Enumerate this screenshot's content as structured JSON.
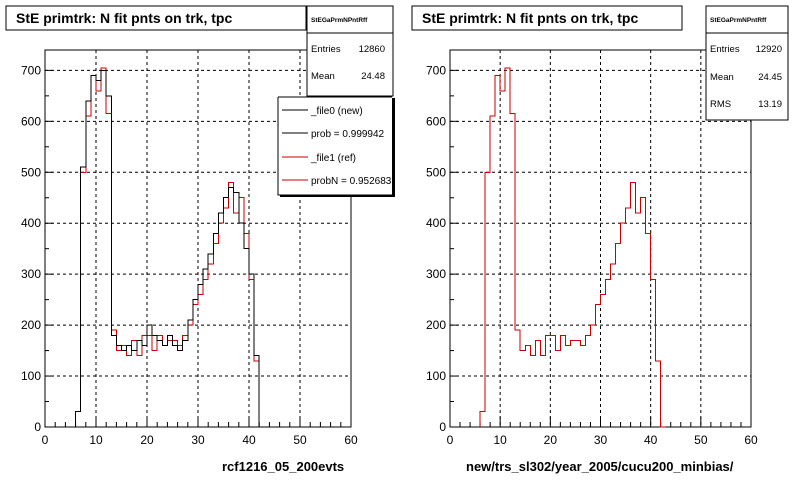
{
  "footer_text": "",
  "colors": {
    "new": "#000000",
    "ref": "#cc0000",
    "grid": "#000000"
  },
  "chart_data": [
    {
      "type": "histogram-step",
      "title": "StE primtrk: N fit pnts on trk, tpc",
      "xlabel": "rcf1216_05_200evts",
      "ylabel": "",
      "xlim": [
        0,
        60
      ],
      "ylim": [
        0,
        740
      ],
      "xticks": [
        0,
        10,
        20,
        30,
        40,
        50,
        60
      ],
      "yticks": [
        0,
        100,
        200,
        300,
        400,
        500,
        600,
        700
      ],
      "grid": true,
      "stats": {
        "header": "StEGaPrmNPntRff",
        "rows": [
          {
            "label": "Entries",
            "value": "12860"
          },
          {
            "label": "Mean",
            "value": "24.48"
          },
          {
            "label": "RMS",
            "value": "13.16"
          }
        ]
      },
      "legend": {
        "placement": "top-right",
        "entries": [
          {
            "label": "_file0 (new)",
            "color": "#000000"
          },
          {
            "label": "prob = 0.999942",
            "color": "#000000"
          },
          {
            "label": "_file1 (ref)",
            "color": "#cc0000"
          },
          {
            "label": "probN = 0.952683",
            "color": "#cc0000"
          }
        ]
      },
      "bin_start": 6,
      "bin_width": 1,
      "series": [
        {
          "name": "_file0 (new)",
          "color": "#000000",
          "values": [
            30,
            510,
            640,
            690,
            680,
            700,
            650,
            180,
            160,
            150,
            160,
            150,
            170,
            160,
            200,
            180,
            170,
            160,
            180,
            160,
            150,
            170,
            210,
            250,
            280,
            310,
            340,
            380,
            420,
            450,
            470,
            460,
            400,
            350,
            300,
            140,
            0
          ]
        },
        {
          "name": "_file1 (ref)",
          "color": "#cc0000",
          "values": [
            30,
            500,
            610,
            690,
            660,
            705,
            615,
            190,
            150,
            160,
            140,
            170,
            140,
            180,
            180,
            150,
            180,
            160,
            170,
            170,
            160,
            180,
            200,
            240,
            260,
            290,
            320,
            360,
            400,
            430,
            480,
            420,
            450,
            380,
            290,
            130,
            0
          ]
        }
      ]
    },
    {
      "type": "histogram-step",
      "title": "StE primtrk: N fit pnts on trk, tpc",
      "xlabel": "new/trs_sl302/year_2005/cucu200_minbias/",
      "ylabel": "",
      "xlim": [
        0,
        60
      ],
      "ylim": [
        0,
        740
      ],
      "xticks": [
        0,
        10,
        20,
        30,
        40,
        50,
        60
      ],
      "yticks": [
        0,
        100,
        200,
        300,
        400,
        500,
        600,
        700
      ],
      "grid": true,
      "stats": {
        "header": "StEGaPrmNPntRff",
        "rows": [
          {
            "label": "Entries",
            "value": "12920"
          },
          {
            "label": "Mean",
            "value": "24.45"
          },
          {
            "label": "RMS",
            "value": "13.19"
          }
        ]
      },
      "bin_start": 6,
      "bin_width": 1,
      "series": [
        {
          "name": "_file1 (ref)",
          "color": "#cc0000",
          "values": [
            30,
            500,
            610,
            690,
            660,
            705,
            615,
            190,
            150,
            160,
            140,
            170,
            140,
            180,
            180,
            150,
            180,
            160,
            170,
            170,
            160,
            180,
            200,
            240,
            260,
            290,
            320,
            360,
            400,
            430,
            480,
            420,
            450,
            380,
            290,
            130,
            0
          ]
        }
      ]
    }
  ]
}
